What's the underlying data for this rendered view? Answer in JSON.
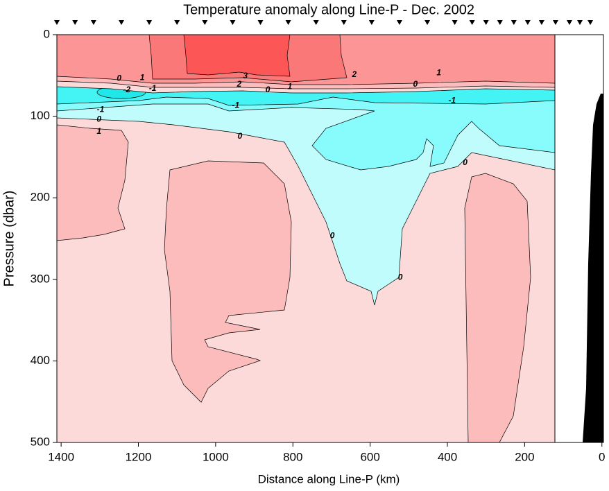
{
  "chart_data": {
    "type": "contour",
    "title": "Temperature anomaly along Line-P - Dec. 2002",
    "x_label": "Distance along Line-P (km)",
    "y_label": "Pressure (dbar)",
    "xlim": [
      1411,
      -4
    ],
    "ylim": [
      0,
      500
    ],
    "xticks": [
      1400,
      1200,
      1000,
      800,
      600,
      400,
      200,
      0
    ],
    "yticks": [
      0,
      100,
      200,
      300,
      400,
      500
    ],
    "stations": [
      1411,
      1364,
      1316,
      1244,
      1172,
      1100,
      1028,
      956,
      884,
      812,
      740,
      668,
      596,
      524,
      452,
      381,
      336,
      300,
      264,
      228,
      192,
      156,
      120,
      84,
      57,
      30
    ],
    "contour_labels": [
      {
        "value": 0,
        "x": 1250,
        "y": 54
      },
      {
        "value": 1,
        "x": 1190,
        "y": 53
      },
      {
        "value": -2,
        "x": 1230,
        "y": 68
      },
      {
        "value": -1,
        "x": 1163,
        "y": 66
      },
      {
        "value": -1,
        "x": 1298,
        "y": 92
      },
      {
        "value": 0,
        "x": 1302,
        "y": 104
      },
      {
        "value": 1,
        "x": 1302,
        "y": 119
      },
      {
        "value": 3,
        "x": 923,
        "y": 51
      },
      {
        "value": 2,
        "x": 939,
        "y": 61
      },
      {
        "value": 0,
        "x": 865,
        "y": 68
      },
      {
        "value": 1,
        "x": 808,
        "y": 64
      },
      {
        "value": -1,
        "x": 948,
        "y": 87
      },
      {
        "value": 0,
        "x": 937,
        "y": 125
      },
      {
        "value": 2,
        "x": 641,
        "y": 49
      },
      {
        "value": 0,
        "x": 483,
        "y": 61
      },
      {
        "value": 1,
        "x": 422,
        "y": 47
      },
      {
        "value": -1,
        "x": 388,
        "y": 81
      },
      {
        "value": 0,
        "x": 354,
        "y": 157
      },
      {
        "value": 0,
        "x": 698,
        "y": 247
      },
      {
        "value": 0,
        "x": 522,
        "y": 298
      }
    ]
  }
}
